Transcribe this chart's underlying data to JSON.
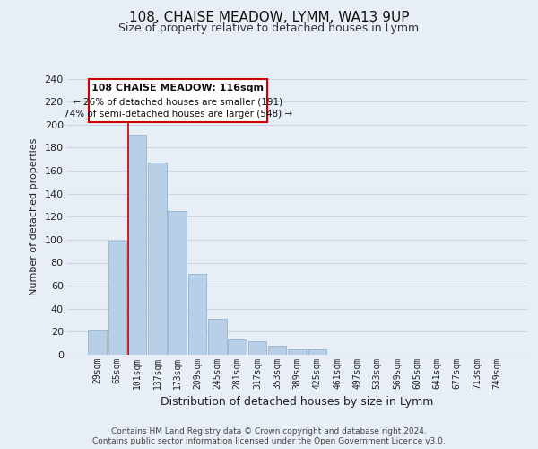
{
  "title": "108, CHAISE MEADOW, LYMM, WA13 9UP",
  "subtitle": "Size of property relative to detached houses in Lymm",
  "xlabel": "Distribution of detached houses by size in Lymm",
  "ylabel": "Number of detached properties",
  "bar_labels": [
    "29sqm",
    "65sqm",
    "101sqm",
    "137sqm",
    "173sqm",
    "209sqm",
    "245sqm",
    "281sqm",
    "317sqm",
    "353sqm",
    "389sqm",
    "425sqm",
    "461sqm",
    "497sqm",
    "533sqm",
    "569sqm",
    "605sqm",
    "641sqm",
    "677sqm",
    "713sqm",
    "749sqm"
  ],
  "bar_values": [
    21,
    99,
    191,
    167,
    125,
    70,
    31,
    13,
    12,
    8,
    5,
    5,
    0,
    0,
    0,
    0,
    0,
    0,
    0,
    0,
    0
  ],
  "bar_color": "#b8cfe8",
  "vline_index": 2,
  "vline_color": "#cc0000",
  "ylim": [
    0,
    240
  ],
  "yticks": [
    0,
    20,
    40,
    60,
    80,
    100,
    120,
    140,
    160,
    180,
    200,
    220,
    240
  ],
  "annotation_title": "108 CHAISE MEADOW: 116sqm",
  "annotation_line1": "← 26% of detached houses are smaller (191)",
  "annotation_line2": "74% of semi-detached houses are larger (548) →",
  "footer_line1": "Contains HM Land Registry data © Crown copyright and database right 2024.",
  "footer_line2": "Contains public sector information licensed under the Open Government Licence v3.0.",
  "background_color": "#e8eef5",
  "plot_bg_color": "#e8eef5",
  "grid_color": "#c8d4e0",
  "title_fontsize": 11,
  "subtitle_fontsize": 9,
  "ylabel_fontsize": 8,
  "xlabel_fontsize": 9
}
